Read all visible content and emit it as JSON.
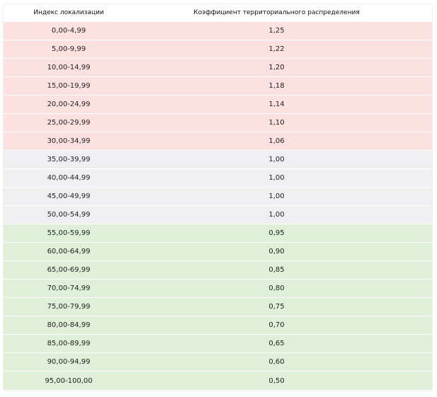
{
  "table": {
    "header": {
      "index_label": "Индекс локализации",
      "coefficient_label": "Коэффициент территориального распределения"
    },
    "colors": {
      "red": "#fde0e0",
      "gray": "#efeff1",
      "green": "#dfefd8"
    },
    "rows": [
      {
        "range": "0,00-4,99",
        "coef": "1,25",
        "group": "red"
      },
      {
        "range": "5,00-9,99",
        "coef": "1,22",
        "group": "red"
      },
      {
        "range": "10,00-14,99",
        "coef": "1,20",
        "group": "red"
      },
      {
        "range": "15,00-19,99",
        "coef": "1,18",
        "group": "red"
      },
      {
        "range": "20,00-24,99",
        "coef": "1,14",
        "group": "red"
      },
      {
        "range": "25,00-29,99",
        "coef": "1,10",
        "group": "red"
      },
      {
        "range": "30,00-34,99",
        "coef": "1,06",
        "group": "red"
      },
      {
        "range": "35,00-39,99",
        "coef": "1,00",
        "group": "gray"
      },
      {
        "range": "40,00-44,99",
        "coef": "1,00",
        "group": "gray"
      },
      {
        "range": "45,00-49,99",
        "coef": "1,00",
        "group": "gray"
      },
      {
        "range": "50,00-54,99",
        "coef": "1,00",
        "group": "gray"
      },
      {
        "range": "55,00-59,99",
        "coef": "0,95",
        "group": "green"
      },
      {
        "range": "60,00-64,99",
        "coef": "0,90",
        "group": "green"
      },
      {
        "range": "65,00-69,99",
        "coef": "0,85",
        "group": "green"
      },
      {
        "range": "70,00-74,99",
        "coef": "0,80",
        "group": "green"
      },
      {
        "range": "75,00-79,99",
        "coef": "0,75",
        "group": "green"
      },
      {
        "range": "80,00-84,99",
        "coef": "0,70",
        "group": "green"
      },
      {
        "range": "85,00-89,99",
        "coef": "0,65",
        "group": "green"
      },
      {
        "range": "90,00-94,99",
        "coef": "0,60",
        "group": "green"
      },
      {
        "range": "95,00-100,00",
        "coef": "0,50",
        "group": "green"
      }
    ]
  }
}
